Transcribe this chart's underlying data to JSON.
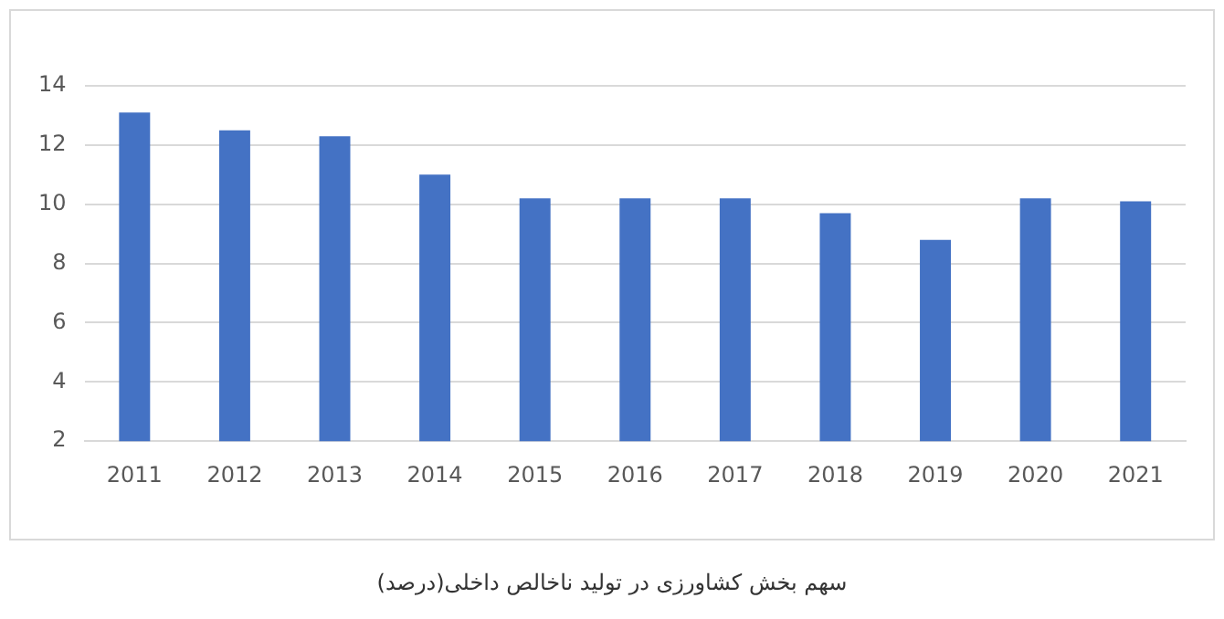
{
  "chart_data": {
    "type": "bar",
    "categories": [
      "2011",
      "2012",
      "2013",
      "2014",
      "2015",
      "2016",
      "2017",
      "2018",
      "2019",
      "2020",
      "2021"
    ],
    "values": [
      13.1,
      12.5,
      12.3,
      11.0,
      10.2,
      10.2,
      10.2,
      9.7,
      8.8,
      10.2,
      10.1
    ],
    "color": "#4472c4",
    "ylim": [
      2,
      14
    ],
    "yticks": [
      2,
      4,
      6,
      8,
      10,
      12,
      14
    ],
    "grid": "y",
    "annotations": [
      "سهم بخش کشاورزی در تولید ناخالص داخلی(درصد)"
    ]
  }
}
